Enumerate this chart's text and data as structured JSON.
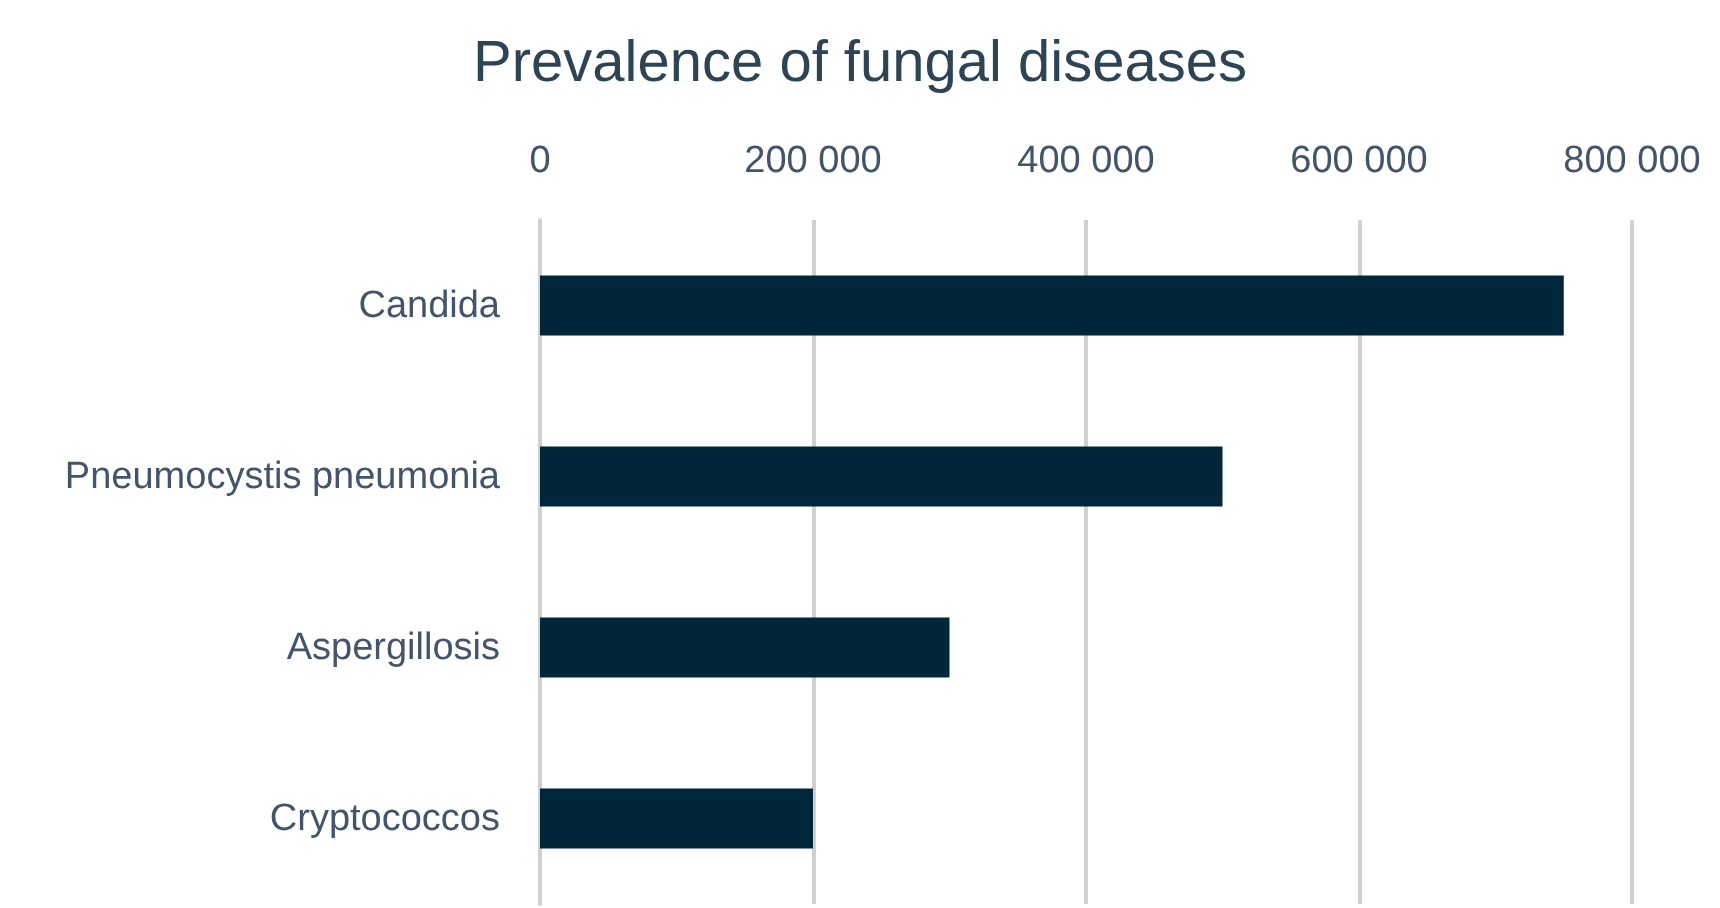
{
  "chart_data": {
    "type": "bar",
    "orientation": "horizontal",
    "title": "Prevalence of fungal diseases",
    "categories": [
      "Candida",
      "Pneumocystis pneumonia",
      "Aspergillosis",
      "Cryptococcos"
    ],
    "values": [
      750000,
      500000,
      300000,
      200000
    ],
    "color": "#00263a",
    "xlim": [
      0,
      800000
    ],
    "xticks": [
      0,
      {
        "value": 200000,
        "label": "200 000"
      },
      {
        "value": 400000,
        "label": "400 000"
      },
      {
        "value": 600000,
        "label": "600 000"
      },
      {
        "value": 800000,
        "label": "800 000"
      }
    ],
    "grid": "x"
  }
}
